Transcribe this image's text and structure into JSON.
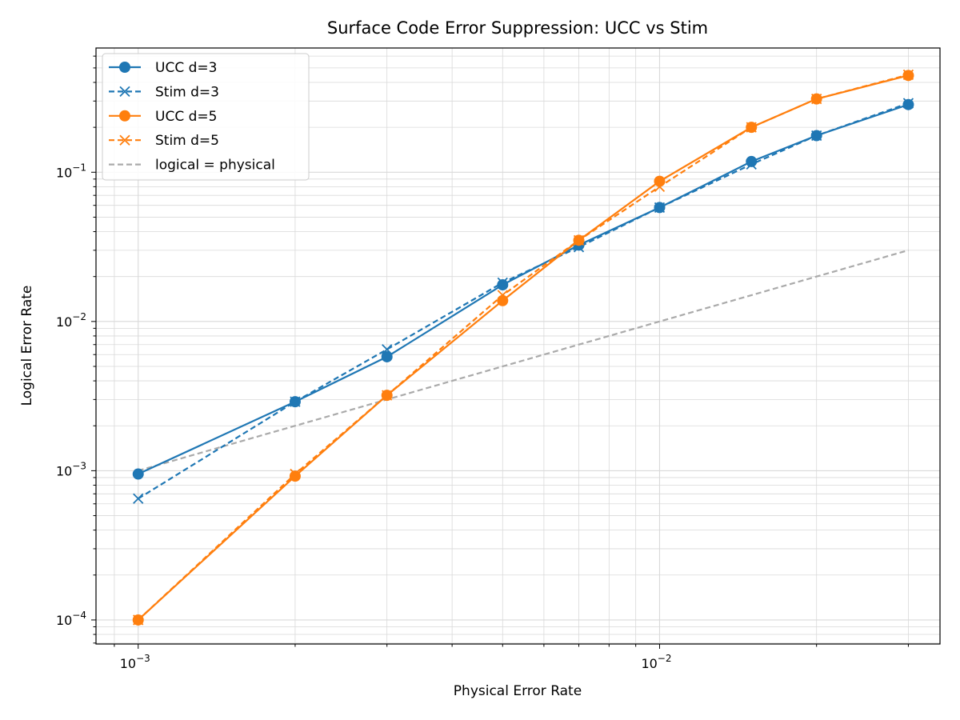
{
  "chart_data": {
    "type": "line",
    "title": "Surface Code Error Suppression: UCC vs Stim",
    "xlabel": "Physical Error Rate",
    "ylabel": "Logical Error Rate",
    "xscale": "log",
    "yscale": "log",
    "xlim": [
      0.00083,
      0.0345
    ],
    "ylim": [
      6.9e-05,
      0.68
    ],
    "grid": "both (major and minor)",
    "legend_position": "top-left",
    "x_ticks": [
      {
        "value": 0.001,
        "base": "10",
        "exp": "−3"
      },
      {
        "value": 0.01,
        "base": "10",
        "exp": "−2"
      }
    ],
    "y_ticks": [
      {
        "value": 0.0001,
        "base": "10",
        "exp": "−4"
      },
      {
        "value": 0.001,
        "base": "10",
        "exp": "−3"
      },
      {
        "value": 0.01,
        "base": "10",
        "exp": "−2"
      },
      {
        "value": 0.1,
        "base": "10",
        "exp": "−1"
      }
    ],
    "series": [
      {
        "name": "UCC d=3",
        "color": "#1f77b4",
        "style": "solid",
        "marker": "circle",
        "x": [
          0.001,
          0.002,
          0.003,
          0.005,
          0.007,
          0.01,
          0.015,
          0.02,
          0.03
        ],
        "y": [
          0.00095,
          0.0029,
          0.0058,
          0.0176,
          0.0325,
          0.058,
          0.118,
          0.176,
          0.284
        ]
      },
      {
        "name": "Stim d=3",
        "color": "#1f77b4",
        "style": "dashed",
        "marker": "x",
        "x": [
          0.001,
          0.002,
          0.003,
          0.005,
          0.007,
          0.01,
          0.015,
          0.02,
          0.03
        ],
        "y": [
          0.00065,
          0.0029,
          0.0065,
          0.0182,
          0.0315,
          0.058,
          0.113,
          0.176,
          0.29
        ]
      },
      {
        "name": "UCC d=5",
        "color": "#ff7f0e",
        "style": "solid",
        "marker": "circle",
        "x": [
          0.001,
          0.002,
          0.003,
          0.005,
          0.007,
          0.01,
          0.015,
          0.02,
          0.03
        ],
        "y": [
          0.0001,
          0.00092,
          0.0032,
          0.0138,
          0.035,
          0.087,
          0.2,
          0.31,
          0.445
        ]
      },
      {
        "name": "Stim d=5",
        "color": "#ff7f0e",
        "style": "dashed",
        "marker": "x",
        "x": [
          0.001,
          0.002,
          0.003,
          0.005,
          0.007,
          0.01,
          0.015,
          0.02,
          0.03
        ],
        "y": [
          0.0001,
          0.00095,
          0.0032,
          0.015,
          0.035,
          0.08,
          0.2,
          0.31,
          0.45
        ]
      },
      {
        "name": "logical = physical",
        "color": "#aaaaaa",
        "style": "dashed",
        "marker": "none",
        "x": [
          0.001,
          0.03
        ],
        "y": [
          0.001,
          0.03
        ]
      }
    ]
  }
}
